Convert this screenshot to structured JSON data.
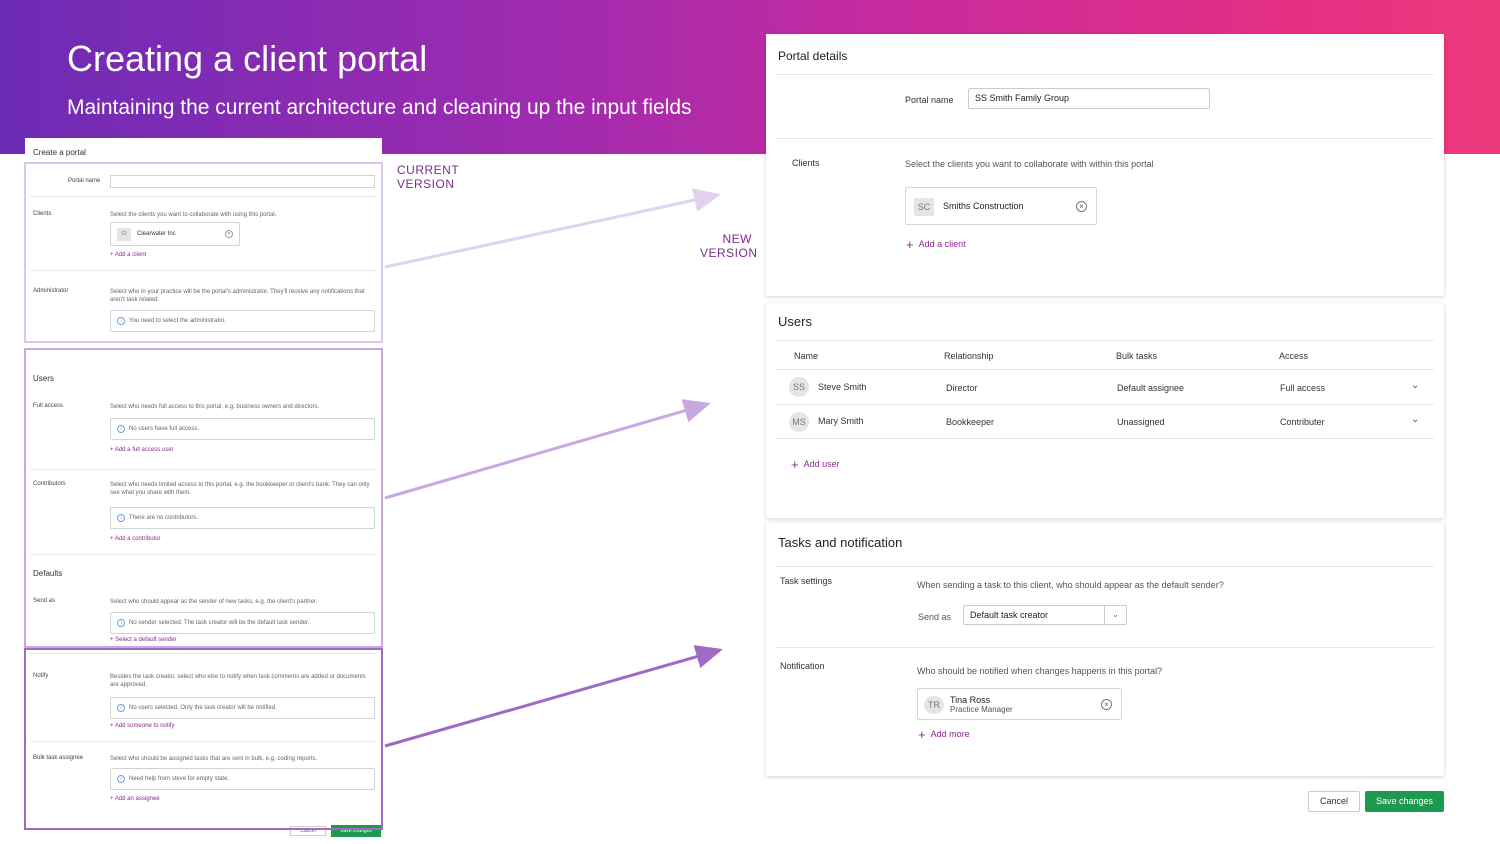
{
  "banner": {
    "title": "Creating a client portal",
    "subtitle": "Maintaining the current architecture and cleaning up the input fields"
  },
  "tags": {
    "current_line1": "CURRENT",
    "current_line2": "VERSION",
    "new_line1": "NEW",
    "new_line2": "VERSION"
  },
  "colors": {
    "accent": "#8a2b8f",
    "save_green": "#1d9a4f",
    "highlight_light": "#d9c2ea",
    "highlight_mid": "#c4a3dc",
    "highlight_dark": "#9e62c3"
  },
  "old_form": {
    "header": "Create a portal",
    "portal_name_label": "Portal name",
    "clients_label": "Clients",
    "clients_desc": "Select the clients you want to collaborate with using this portal.",
    "client_chip_initials": "CI",
    "client_chip_name": "Clearwater Inc",
    "add_client": "Add a client",
    "admin_label": "Administrator",
    "admin_desc": "Select who in your practice will be the portal's administrator. They'll receive any notifications that aren't task related.",
    "admin_empty": "You need to select the administrator.",
    "users_title": "Users",
    "full_access_label": "Full access",
    "full_access_desc": "Select who needs full access to this portal, e.g. business owners and directors.",
    "full_access_empty": "No users have full access.",
    "add_full_access": "Add a full access user",
    "contributors_label": "Contributors",
    "contributors_desc": "Select who needs limited access to this portal, e.g. the bookkeeper or client's bank. They can only see what you share with them.",
    "contributors_empty": "There are no contributors.",
    "add_contributor": "Add a contributor",
    "defaults_title": "Defaults",
    "send_as_label": "Send as",
    "send_as_desc": "Select who should appear as the sender of new tasks, e.g. the client's partner.",
    "send_as_empty": "No sender selected. The task creator will be the default task sender.",
    "select_default_sender": "Select a default sender",
    "notify_label": "Notify",
    "notify_desc": "Besides the task creator, select who else to notify when task comments are added or documents are approved.",
    "notify_empty": "No users selected. Only the task creator will be notified.",
    "add_notify": "Add someone to notify",
    "bulk_label": "Bulk task assignee",
    "bulk_desc": "Select who should be assigned tasks that are sent in bulk, e.g. coding reports.",
    "bulk_empty": "Need help from steve for empty state.",
    "add_assignee": "Add an assignee",
    "cancel": "Cancel",
    "save": "Save changes"
  },
  "portal_details": {
    "title": "Portal details",
    "portal_name_label": "Portal name",
    "portal_name_value": "SS Smith Family Group",
    "clients_label": "Clients",
    "clients_desc": "Select the clients you want to collaborate with within this portal",
    "client_initials": "SC",
    "client_name": "Smiths Construction",
    "add_client": "Add a client"
  },
  "users": {
    "title": "Users",
    "columns": [
      "Name",
      "Relationship",
      "Bulk tasks",
      "Access"
    ],
    "rows": [
      {
        "initials": "SS",
        "name": "Steve Smith",
        "relationship": "Director",
        "bulk": "Default assignee",
        "access": "Full access"
      },
      {
        "initials": "MS",
        "name": "Mary Smith",
        "relationship": "Bookkeeper",
        "bulk": "Unassigned",
        "access": "Contributer"
      }
    ],
    "add_user": "Add user"
  },
  "tasks": {
    "title": "Tasks and notification",
    "task_settings_label": "Task settings",
    "task_settings_desc": "When sending a task to this client, who should appear as the default sender?",
    "send_as_label": "Send as",
    "send_as_value": "Default task creator",
    "notification_label": "Notification",
    "notification_desc": "Who should be notified when changes happens in this portal?",
    "notify_initials": "TR",
    "notify_name": "Tina Ross",
    "notify_role": "Practice Manager",
    "add_more": "Add more"
  },
  "actions": {
    "cancel": "Cancel",
    "save": "Save changes"
  }
}
